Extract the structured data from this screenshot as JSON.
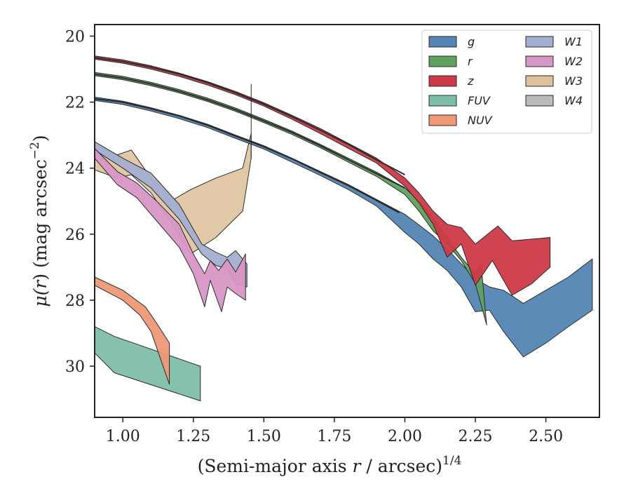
{
  "chart_data": {
    "type": "area",
    "xlabel_main": "(Semi-major axis ",
    "xlabel_var": "r",
    "xlabel_rest": " / arcsec)",
    "xlabel_exp": "1/4",
    "ylabel_mu": "μ(",
    "ylabel_var": "r",
    "ylabel_rest": ") (mag arcsec",
    "ylabel_exp": "−2",
    "ylabel_close": ")",
    "xlim": [
      0.9,
      2.69
    ],
    "ylim": [
      31.55,
      19.65
    ],
    "xticks": [
      1.0,
      1.25,
      1.5,
      1.75,
      2.0,
      2.25,
      2.5
    ],
    "xtick_labels": [
      "1.00",
      "1.25",
      "1.50",
      "1.75",
      "2.00",
      "2.25",
      "2.50"
    ],
    "yticks": [
      20,
      22,
      24,
      26,
      28,
      30
    ],
    "ytick_labels": [
      "20",
      "22",
      "24",
      "26",
      "28",
      "30"
    ],
    "legend_position": "top-right",
    "legend_columns": 2,
    "model_curves": {
      "g": [
        [
          0.9,
          21.9
        ],
        [
          1.0,
          22.0
        ],
        [
          1.1,
          22.2
        ],
        [
          1.2,
          22.42
        ],
        [
          1.3,
          22.7
        ],
        [
          1.4,
          23.03
        ],
        [
          1.5,
          23.35
        ],
        [
          1.6,
          23.72
        ],
        [
          1.7,
          24.13
        ],
        [
          1.8,
          24.53
        ],
        [
          1.9,
          24.98
        ],
        [
          1.98,
          25.35
        ]
      ],
      "r": [
        [
          0.9,
          21.15
        ],
        [
          1.0,
          21.27
        ],
        [
          1.1,
          21.45
        ],
        [
          1.2,
          21.67
        ],
        [
          1.3,
          21.93
        ],
        [
          1.4,
          22.23
        ],
        [
          1.5,
          22.57
        ],
        [
          1.6,
          22.92
        ],
        [
          1.7,
          23.32
        ],
        [
          1.8,
          23.75
        ],
        [
          1.9,
          24.17
        ],
        [
          2.0,
          24.6
        ]
      ],
      "z": [
        [
          0.9,
          20.65
        ],
        [
          1.0,
          20.77
        ],
        [
          1.1,
          20.94
        ],
        [
          1.2,
          21.15
        ],
        [
          1.3,
          21.41
        ],
        [
          1.4,
          21.72
        ],
        [
          1.5,
          22.06
        ],
        [
          1.6,
          22.44
        ],
        [
          1.7,
          22.85
        ],
        [
          1.8,
          23.28
        ],
        [
          1.9,
          23.75
        ],
        [
          2.0,
          24.2
        ]
      ]
    },
    "series": [
      {
        "name": "g",
        "color": "#5485b3",
        "upper": [
          [
            0.9,
            21.85
          ],
          [
            1.0,
            21.97
          ],
          [
            1.1,
            22.17
          ],
          [
            1.2,
            22.4
          ],
          [
            1.3,
            22.67
          ],
          [
            1.4,
            23.0
          ],
          [
            1.5,
            23.32
          ],
          [
            1.6,
            23.7
          ],
          [
            1.7,
            24.1
          ],
          [
            1.8,
            24.5
          ],
          [
            1.9,
            24.95
          ],
          [
            2.0,
            25.4
          ],
          [
            2.05,
            25.72
          ],
          [
            2.1,
            26.05
          ],
          [
            2.15,
            26.45
          ],
          [
            2.2,
            26.9
          ],
          [
            2.25,
            27.35
          ],
          [
            2.3,
            27.6
          ],
          [
            2.35,
            27.7
          ],
          [
            2.42,
            28.1
          ],
          [
            2.5,
            27.7
          ],
          [
            2.58,
            27.3
          ],
          [
            2.665,
            26.75
          ]
        ],
        "lower": [
          [
            0.9,
            21.95
          ],
          [
            1.0,
            22.07
          ],
          [
            1.1,
            22.27
          ],
          [
            1.2,
            22.5
          ],
          [
            1.3,
            22.77
          ],
          [
            1.4,
            23.1
          ],
          [
            1.5,
            23.42
          ],
          [
            1.6,
            23.82
          ],
          [
            1.7,
            24.22
          ],
          [
            1.8,
            24.65
          ],
          [
            1.9,
            25.15
          ],
          [
            1.95,
            25.55
          ],
          [
            2.0,
            25.95
          ],
          [
            2.05,
            26.3
          ],
          [
            2.1,
            26.75
          ],
          [
            2.15,
            27.1
          ],
          [
            2.2,
            27.6
          ],
          [
            2.25,
            28.35
          ],
          [
            2.3,
            28.3
          ],
          [
            2.35,
            28.95
          ],
          [
            2.42,
            29.72
          ],
          [
            2.5,
            29.3
          ],
          [
            2.58,
            28.8
          ],
          [
            2.665,
            28.3
          ]
        ]
      },
      {
        "name": "r",
        "color": "#5fa25f",
        "upper": [
          [
            0.9,
            21.1
          ],
          [
            1.0,
            21.22
          ],
          [
            1.1,
            21.4
          ],
          [
            1.2,
            21.62
          ],
          [
            1.3,
            21.88
          ],
          [
            1.4,
            22.18
          ],
          [
            1.5,
            22.52
          ],
          [
            1.6,
            22.88
          ],
          [
            1.7,
            23.28
          ],
          [
            1.8,
            23.7
          ],
          [
            1.9,
            24.12
          ],
          [
            2.0,
            24.6
          ],
          [
            2.05,
            25.0
          ],
          [
            2.1,
            25.5
          ],
          [
            2.15,
            26.1
          ],
          [
            2.2,
            26.7
          ],
          [
            2.25,
            27.2
          ],
          [
            2.27,
            26.9
          ]
        ],
        "lower": [
          [
            0.9,
            21.2
          ],
          [
            1.0,
            21.32
          ],
          [
            1.1,
            21.5
          ],
          [
            1.2,
            21.72
          ],
          [
            1.3,
            21.98
          ],
          [
            1.4,
            22.28
          ],
          [
            1.5,
            22.62
          ],
          [
            1.6,
            22.98
          ],
          [
            1.7,
            23.38
          ],
          [
            1.8,
            23.82
          ],
          [
            1.9,
            24.25
          ],
          [
            2.0,
            24.8
          ],
          [
            2.05,
            25.3
          ],
          [
            2.1,
            25.9
          ],
          [
            2.15,
            26.3
          ],
          [
            2.2,
            26.8
          ],
          [
            2.25,
            27.5
          ],
          [
            2.29,
            28.75
          ]
        ]
      },
      {
        "name": "z",
        "color": "#cc3a47",
        "upper": [
          [
            0.9,
            20.6
          ],
          [
            1.0,
            20.72
          ],
          [
            1.1,
            20.9
          ],
          [
            1.2,
            21.12
          ],
          [
            1.3,
            21.38
          ],
          [
            1.4,
            21.68
          ],
          [
            1.5,
            22.02
          ],
          [
            1.6,
            22.4
          ],
          [
            1.7,
            22.8
          ],
          [
            1.8,
            23.25
          ],
          [
            1.9,
            23.7
          ],
          [
            2.0,
            24.3
          ],
          [
            2.05,
            24.75
          ],
          [
            2.1,
            25.3
          ],
          [
            2.15,
            25.7
          ],
          [
            2.2,
            25.8
          ],
          [
            2.25,
            26.3
          ],
          [
            2.33,
            25.75
          ],
          [
            2.38,
            26.2
          ],
          [
            2.45,
            26.15
          ],
          [
            2.515,
            26.1
          ]
        ],
        "lower": [
          [
            0.9,
            20.7
          ],
          [
            1.0,
            20.82
          ],
          [
            1.1,
            21.0
          ],
          [
            1.2,
            21.22
          ],
          [
            1.3,
            21.48
          ],
          [
            1.4,
            21.78
          ],
          [
            1.5,
            22.12
          ],
          [
            1.6,
            22.52
          ],
          [
            1.7,
            22.95
          ],
          [
            1.8,
            23.4
          ],
          [
            1.9,
            23.85
          ],
          [
            2.0,
            24.55
          ],
          [
            2.05,
            25.05
          ],
          [
            2.1,
            25.7
          ],
          [
            2.15,
            26.7
          ],
          [
            2.2,
            26.3
          ],
          [
            2.25,
            27.55
          ],
          [
            2.31,
            26.8
          ],
          [
            2.38,
            27.85
          ],
          [
            2.45,
            27.5
          ],
          [
            2.515,
            27.0
          ]
        ]
      },
      {
        "name": "FUV",
        "color": "#7ebea8",
        "upper": [
          [
            0.9,
            28.8
          ],
          [
            0.97,
            29.1
          ],
          [
            1.275,
            30.0
          ]
        ],
        "lower": [
          [
            0.9,
            29.6
          ],
          [
            0.97,
            30.2
          ],
          [
            1.275,
            31.05
          ]
        ]
      },
      {
        "name": "NUV",
        "color": "#ee9876",
        "upper": [
          [
            0.9,
            27.3
          ],
          [
            1.0,
            27.7
          ],
          [
            1.08,
            28.2
          ],
          [
            1.12,
            28.7
          ],
          [
            1.165,
            29.3
          ]
        ],
        "lower": [
          [
            0.9,
            27.55
          ],
          [
            1.0,
            28.0
          ],
          [
            1.06,
            28.45
          ],
          [
            1.1,
            28.95
          ],
          [
            1.165,
            30.55
          ]
        ]
      },
      {
        "name": "W1",
        "color": "#a3afd0",
        "upper": [
          [
            0.9,
            23.2
          ],
          [
            1.0,
            23.7
          ],
          [
            1.1,
            24.15
          ],
          [
            1.2,
            25.1
          ],
          [
            1.28,
            26.3
          ],
          [
            1.33,
            26.55
          ],
          [
            1.37,
            26.7
          ],
          [
            1.4,
            26.5
          ],
          [
            1.44,
            26.9
          ]
        ],
        "lower": [
          [
            0.9,
            23.45
          ],
          [
            1.0,
            24.0
          ],
          [
            1.1,
            24.6
          ],
          [
            1.2,
            25.55
          ],
          [
            1.28,
            26.6
          ],
          [
            1.33,
            26.95
          ],
          [
            1.37,
            27.05
          ],
          [
            1.4,
            27.5
          ],
          [
            1.44,
            27.6
          ]
        ]
      },
      {
        "name": "W2",
        "color": "#d896c6",
        "upper": [
          [
            0.9,
            23.4
          ],
          [
            0.98,
            24.1
          ],
          [
            1.05,
            24.45
          ],
          [
            1.12,
            25.0
          ],
          [
            1.2,
            25.7
          ],
          [
            1.25,
            26.6
          ],
          [
            1.29,
            27.2
          ],
          [
            1.31,
            26.8
          ],
          [
            1.34,
            27.1
          ],
          [
            1.37,
            26.75
          ],
          [
            1.4,
            27.15
          ],
          [
            1.435,
            26.6
          ]
        ],
        "lower": [
          [
            0.9,
            23.7
          ],
          [
            0.98,
            24.5
          ],
          [
            1.05,
            24.9
          ],
          [
            1.12,
            25.6
          ],
          [
            1.2,
            26.4
          ],
          [
            1.25,
            27.2
          ],
          [
            1.29,
            28.2
          ],
          [
            1.31,
            27.4
          ],
          [
            1.35,
            28.35
          ],
          [
            1.37,
            27.6
          ],
          [
            1.4,
            27.8
          ],
          [
            1.435,
            28.0
          ]
        ]
      },
      {
        "name": "W3",
        "color": "#dec29c",
        "upper": [
          [
            0.9,
            23.3
          ],
          [
            0.98,
            23.6
          ],
          [
            1.03,
            23.45
          ],
          [
            1.1,
            24.3
          ],
          [
            1.18,
            24.95
          ],
          [
            1.24,
            24.65
          ],
          [
            1.33,
            24.3
          ],
          [
            1.425,
            24.0
          ],
          [
            1.455,
            22.95
          ]
        ],
        "lower": [
          [
            0.9,
            24.05
          ],
          [
            0.98,
            24.3
          ],
          [
            1.03,
            24.2
          ],
          [
            1.1,
            24.75
          ],
          [
            1.18,
            25.75
          ],
          [
            1.24,
            26.6
          ],
          [
            1.33,
            26.1
          ],
          [
            1.425,
            25.3
          ],
          [
            1.455,
            23.7
          ]
        ]
      },
      {
        "name": "W4",
        "color": "#bbbbbb",
        "upper": [],
        "lower": []
      }
    ],
    "w3_spike": [
      [
        1.455,
        21.45
      ],
      [
        1.455,
        23.7
      ]
    ]
  }
}
